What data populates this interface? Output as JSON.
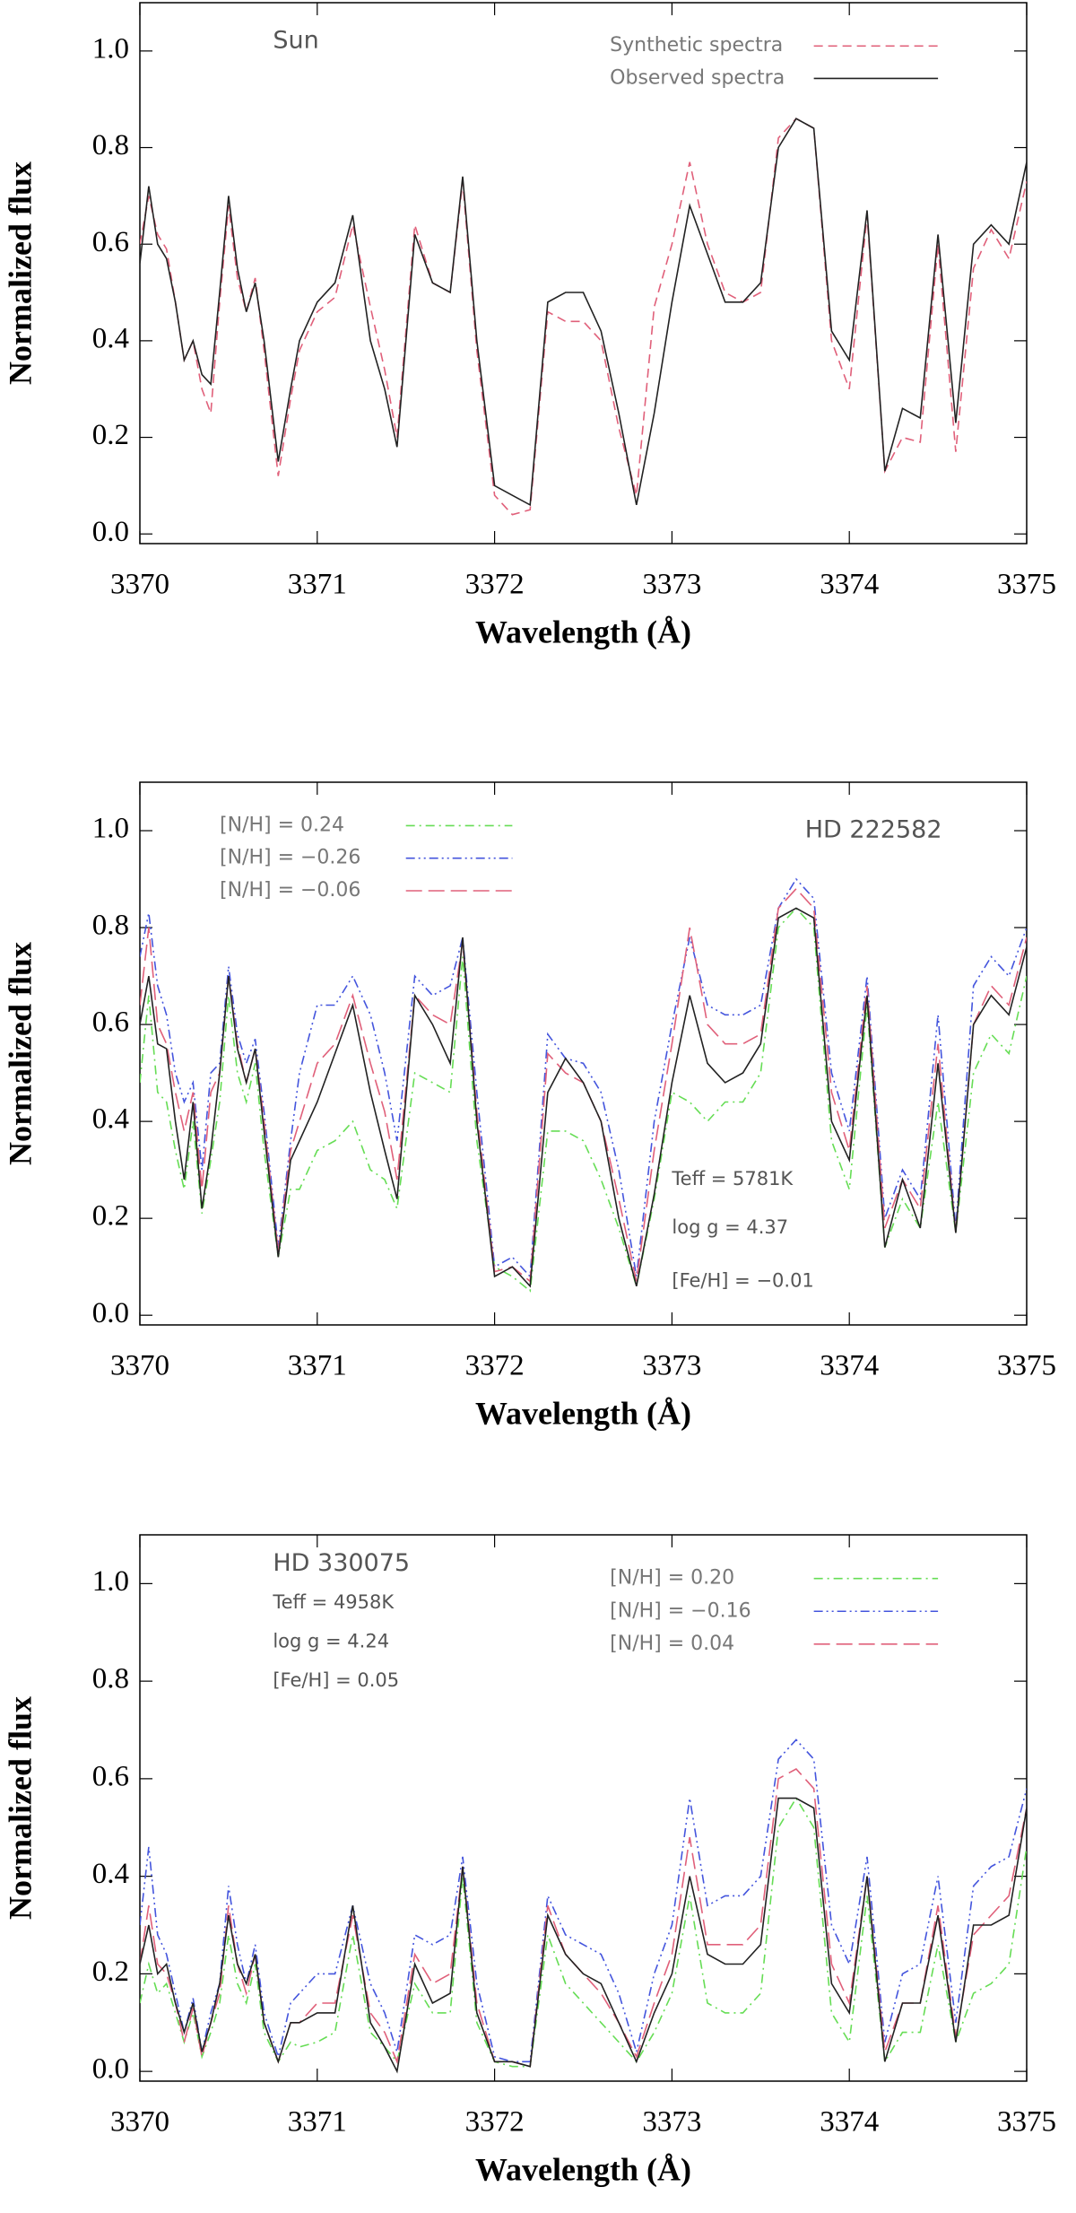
{
  "chart_data": [
    {
      "type": "line",
      "xlabel": "Wavelength (Å)",
      "ylabel": "Normalized flux",
      "annotations": [
        "Sun"
      ],
      "legend": "upper right",
      "grid": false,
      "xlim": [
        3370,
        3375
      ],
      "xticks": [
        3370,
        3371,
        3372,
        3373,
        3374,
        3375
      ],
      "ylim": [
        -0.02,
        1.1
      ],
      "yticks": [
        {
          "value": 0,
          "label": "0.0"
        },
        {
          "value": 0.2,
          "label": "0.2"
        },
        {
          "value": 0.4,
          "label": "0.4"
        },
        {
          "value": 0.6,
          "label": "0.6"
        },
        {
          "value": 0.8,
          "label": "0.8"
        },
        {
          "value": 1,
          "label": "1.0"
        }
      ],
      "x": [
        3370.0,
        3370.05,
        3370.1,
        3370.15,
        3370.2,
        3370.25,
        3370.3,
        3370.35,
        3370.4,
        3370.45,
        3370.5,
        3370.55,
        3370.6,
        3370.65,
        3370.7,
        3370.78,
        3370.85,
        3370.9,
        3371.0,
        3371.1,
        3371.2,
        3371.3,
        3371.38,
        3371.45,
        3371.55,
        3371.65,
        3371.75,
        3371.82,
        3371.9,
        3372.0,
        3372.1,
        3372.2,
        3372.3,
        3372.4,
        3372.5,
        3372.6,
        3372.7,
        3372.8,
        3372.9,
        3373.0,
        3373.1,
        3373.2,
        3373.3,
        3373.4,
        3373.5,
        3373.6,
        3373.7,
        3373.8,
        3373.9,
        3374.0,
        3374.1,
        3374.2,
        3374.3,
        3374.4,
        3374.5,
        3374.6,
        3374.7,
        3374.8,
        3374.9,
        3375.0
      ],
      "series": [
        {
          "name": "Synthetic spectra",
          "color": "#e0607a",
          "style": "dashed",
          "values": [
            0.6,
            0.7,
            0.62,
            0.59,
            0.48,
            0.36,
            0.4,
            0.3,
            0.25,
            0.48,
            0.68,
            0.53,
            0.46,
            0.53,
            0.38,
            0.12,
            0.28,
            0.38,
            0.46,
            0.49,
            0.64,
            0.47,
            0.34,
            0.2,
            0.64,
            0.52,
            0.5,
            0.73,
            0.38,
            0.08,
            0.04,
            0.05,
            0.46,
            0.44,
            0.44,
            0.4,
            0.22,
            0.08,
            0.47,
            0.6,
            0.77,
            0.6,
            0.5,
            0.48,
            0.5,
            0.82,
            0.86,
            0.84,
            0.4,
            0.3,
            0.66,
            0.13,
            0.2,
            0.19,
            0.6,
            0.17,
            0.55,
            0.63,
            0.57,
            0.73
          ]
        },
        {
          "name": "Observed spectra",
          "color": "#222222",
          "style": "solid",
          "values": [
            0.56,
            0.72,
            0.6,
            0.57,
            0.48,
            0.36,
            0.4,
            0.33,
            0.31,
            0.5,
            0.7,
            0.55,
            0.46,
            0.52,
            0.4,
            0.15,
            0.3,
            0.4,
            0.48,
            0.52,
            0.66,
            0.4,
            0.3,
            0.18,
            0.62,
            0.52,
            0.5,
            0.74,
            0.4,
            0.1,
            0.08,
            0.06,
            0.48,
            0.5,
            0.5,
            0.42,
            0.25,
            0.06,
            0.25,
            0.48,
            0.68,
            0.58,
            0.48,
            0.48,
            0.52,
            0.8,
            0.86,
            0.84,
            0.42,
            0.36,
            0.67,
            0.13,
            0.26,
            0.24,
            0.62,
            0.23,
            0.6,
            0.64,
            0.6,
            0.77
          ]
        }
      ]
    },
    {
      "type": "line",
      "xlabel": "Wavelength (Å)",
      "ylabel": "Normalized flux",
      "annotations": [
        "HD 222582",
        "Teff = 5781K",
        "log g = 4.37",
        "[Fe/H] = −0.01"
      ],
      "legend": "upper left",
      "grid": false,
      "xlim": [
        3370,
        3375
      ],
      "xticks": [
        3370,
        3371,
        3372,
        3373,
        3374,
        3375
      ],
      "ylim": [
        -0.02,
        1.1
      ],
      "yticks": [
        {
          "value": 0,
          "label": "0.0"
        },
        {
          "value": 0.2,
          "label": "0.2"
        },
        {
          "value": 0.4,
          "label": "0.4"
        },
        {
          "value": 0.6,
          "label": "0.6"
        },
        {
          "value": 0.8,
          "label": "0.8"
        },
        {
          "value": 1,
          "label": "1.0"
        }
      ],
      "x": [
        3370.0,
        3370.05,
        3370.1,
        3370.15,
        3370.2,
        3370.25,
        3370.3,
        3370.35,
        3370.4,
        3370.45,
        3370.5,
        3370.55,
        3370.6,
        3370.65,
        3370.7,
        3370.78,
        3370.85,
        3370.9,
        3371.0,
        3371.1,
        3371.2,
        3371.3,
        3371.38,
        3371.45,
        3371.55,
        3371.65,
        3371.75,
        3371.82,
        3371.9,
        3372.0,
        3372.1,
        3372.2,
        3372.3,
        3372.4,
        3372.5,
        3372.6,
        3372.7,
        3372.8,
        3372.9,
        3373.0,
        3373.1,
        3373.2,
        3373.3,
        3373.4,
        3373.5,
        3373.6,
        3373.7,
        3373.8,
        3373.9,
        3374.0,
        3374.1,
        3374.2,
        3374.3,
        3374.4,
        3374.5,
        3374.6,
        3374.7,
        3374.8,
        3374.9,
        3375.0
      ],
      "series": [
        {
          "name": "[N/H] =  0.24",
          "color": "#66dd55",
          "style": "dashdot",
          "values": [
            0.48,
            0.66,
            0.46,
            0.44,
            0.34,
            0.26,
            0.4,
            0.21,
            0.32,
            0.44,
            0.66,
            0.5,
            0.44,
            0.52,
            0.34,
            0.12,
            0.26,
            0.26,
            0.34,
            0.36,
            0.4,
            0.3,
            0.28,
            0.22,
            0.5,
            0.48,
            0.46,
            0.74,
            0.36,
            0.1,
            0.08,
            0.05,
            0.38,
            0.38,
            0.36,
            0.28,
            0.18,
            0.06,
            0.24,
            0.46,
            0.44,
            0.4,
            0.44,
            0.44,
            0.5,
            0.8,
            0.84,
            0.8,
            0.36,
            0.26,
            0.64,
            0.14,
            0.24,
            0.18,
            0.44,
            0.17,
            0.5,
            0.58,
            0.54,
            0.7
          ]
        },
        {
          "name": "[N/H] = −0.26",
          "color": "#4455dd",
          "style": "dashdotdot",
          "values": [
            0.74,
            0.83,
            0.68,
            0.62,
            0.5,
            0.44,
            0.48,
            0.3,
            0.5,
            0.52,
            0.72,
            0.58,
            0.52,
            0.57,
            0.42,
            0.14,
            0.36,
            0.5,
            0.64,
            0.64,
            0.7,
            0.62,
            0.5,
            0.36,
            0.7,
            0.66,
            0.68,
            0.78,
            0.46,
            0.1,
            0.12,
            0.08,
            0.58,
            0.53,
            0.52,
            0.46,
            0.3,
            0.08,
            0.4,
            0.6,
            0.78,
            0.64,
            0.62,
            0.62,
            0.64,
            0.84,
            0.9,
            0.86,
            0.5,
            0.38,
            0.7,
            0.2,
            0.3,
            0.24,
            0.62,
            0.18,
            0.68,
            0.74,
            0.7,
            0.8
          ]
        },
        {
          "name": "[N/H] = −0.06",
          "color": "#e0607a",
          "style": "longdash",
          "values": [
            0.64,
            0.8,
            0.6,
            0.56,
            0.46,
            0.38,
            0.46,
            0.26,
            0.46,
            0.5,
            0.7,
            0.56,
            0.48,
            0.55,
            0.4,
            0.13,
            0.34,
            0.4,
            0.52,
            0.56,
            0.66,
            0.52,
            0.42,
            0.28,
            0.66,
            0.62,
            0.6,
            0.77,
            0.42,
            0.09,
            0.1,
            0.07,
            0.54,
            0.5,
            0.48,
            0.4,
            0.24,
            0.07,
            0.34,
            0.56,
            0.8,
            0.6,
            0.56,
            0.56,
            0.58,
            0.84,
            0.88,
            0.84,
            0.46,
            0.34,
            0.68,
            0.18,
            0.28,
            0.22,
            0.56,
            0.17,
            0.6,
            0.68,
            0.64,
            0.78
          ]
        },
        {
          "color": "#222222",
          "style": "solid",
          "values": [
            0.6,
            0.7,
            0.56,
            0.55,
            0.4,
            0.28,
            0.44,
            0.22,
            0.34,
            0.5,
            0.7,
            0.55,
            0.48,
            0.55,
            0.38,
            0.12,
            0.32,
            0.36,
            0.44,
            0.54,
            0.64,
            0.46,
            0.34,
            0.24,
            0.66,
            0.6,
            0.52,
            0.78,
            0.4,
            0.08,
            0.1,
            0.06,
            0.46,
            0.53,
            0.48,
            0.4,
            0.2,
            0.06,
            0.25,
            0.48,
            0.66,
            0.52,
            0.48,
            0.5,
            0.56,
            0.82,
            0.84,
            0.82,
            0.4,
            0.32,
            0.66,
            0.14,
            0.28,
            0.18,
            0.52,
            0.17,
            0.6,
            0.66,
            0.62,
            0.76
          ]
        }
      ]
    },
    {
      "type": "line",
      "xlabel": "Wavelength (Å)",
      "ylabel": "Normalized flux",
      "annotations": [
        "HD 330075",
        "Teff = 4958K",
        "log g = 4.24",
        "[Fe/H] = 0.05"
      ],
      "legend": "upper right",
      "grid": false,
      "xlim": [
        3370,
        3375
      ],
      "xticks": [
        3370,
        3371,
        3372,
        3373,
        3374,
        3375
      ],
      "ylim": [
        -0.02,
        1.1
      ],
      "yticks": [
        {
          "value": 0,
          "label": "0.0"
        },
        {
          "value": 0.2,
          "label": "0.2"
        },
        {
          "value": 0.4,
          "label": "0.4"
        },
        {
          "value": 0.6,
          "label": "0.6"
        },
        {
          "value": 0.8,
          "label": "0.8"
        },
        {
          "value": 1,
          "label": "1.0"
        }
      ],
      "x": [
        3370.0,
        3370.05,
        3370.1,
        3370.15,
        3370.2,
        3370.25,
        3370.3,
        3370.35,
        3370.4,
        3370.45,
        3370.5,
        3370.55,
        3370.6,
        3370.65,
        3370.7,
        3370.78,
        3370.85,
        3370.9,
        3371.0,
        3371.1,
        3371.2,
        3371.3,
        3371.38,
        3371.45,
        3371.55,
        3371.65,
        3371.75,
        3371.82,
        3371.9,
        3372.0,
        3372.1,
        3372.2,
        3372.3,
        3372.4,
        3372.5,
        3372.6,
        3372.7,
        3372.8,
        3372.9,
        3373.0,
        3373.1,
        3373.2,
        3373.3,
        3373.4,
        3373.5,
        3373.6,
        3373.7,
        3373.8,
        3373.9,
        3374.0,
        3374.1,
        3374.2,
        3374.3,
        3374.4,
        3374.5,
        3374.6,
        3374.7,
        3374.8,
        3374.9,
        3375.0
      ],
      "series": [
        {
          "name": "[N/H] =  0.20",
          "color": "#66dd55",
          "style": "dashdot",
          "values": [
            0.14,
            0.22,
            0.16,
            0.18,
            0.12,
            0.06,
            0.12,
            0.03,
            0.08,
            0.14,
            0.28,
            0.18,
            0.14,
            0.22,
            0.08,
            0.02,
            0.06,
            0.05,
            0.06,
            0.08,
            0.28,
            0.08,
            0.05,
            0.02,
            0.18,
            0.12,
            0.12,
            0.4,
            0.1,
            0.02,
            0.01,
            0.01,
            0.28,
            0.18,
            0.14,
            0.1,
            0.06,
            0.02,
            0.08,
            0.16,
            0.36,
            0.14,
            0.12,
            0.12,
            0.16,
            0.5,
            0.56,
            0.5,
            0.12,
            0.06,
            0.36,
            0.02,
            0.08,
            0.08,
            0.26,
            0.06,
            0.16,
            0.18,
            0.22,
            0.46
          ]
        },
        {
          "name": "[N/H] = −0.16",
          "color": "#4455dd",
          "style": "dashdotdot",
          "values": [
            0.3,
            0.46,
            0.28,
            0.24,
            0.16,
            0.08,
            0.15,
            0.04,
            0.12,
            0.18,
            0.38,
            0.26,
            0.18,
            0.26,
            0.12,
            0.03,
            0.14,
            0.16,
            0.2,
            0.2,
            0.34,
            0.18,
            0.12,
            0.04,
            0.28,
            0.26,
            0.28,
            0.44,
            0.18,
            0.03,
            0.02,
            0.02,
            0.36,
            0.28,
            0.26,
            0.24,
            0.16,
            0.04,
            0.2,
            0.3,
            0.56,
            0.34,
            0.36,
            0.36,
            0.4,
            0.64,
            0.68,
            0.64,
            0.3,
            0.22,
            0.44,
            0.06,
            0.2,
            0.22,
            0.4,
            0.1,
            0.38,
            0.42,
            0.44,
            0.58
          ]
        },
        {
          "name": "[N/H] =  0.04",
          "color": "#e0607a",
          "style": "longdash",
          "values": [
            0.22,
            0.34,
            0.22,
            0.2,
            0.14,
            0.06,
            0.13,
            0.03,
            0.1,
            0.16,
            0.34,
            0.22,
            0.16,
            0.24,
            0.1,
            0.02,
            0.1,
            0.1,
            0.14,
            0.14,
            0.32,
            0.12,
            0.08,
            0.02,
            0.24,
            0.18,
            0.2,
            0.42,
            0.14,
            0.02,
            0.02,
            0.01,
            0.34,
            0.24,
            0.2,
            0.16,
            0.1,
            0.03,
            0.14,
            0.24,
            0.48,
            0.26,
            0.26,
            0.26,
            0.3,
            0.6,
            0.62,
            0.58,
            0.22,
            0.14,
            0.4,
            0.04,
            0.14,
            0.14,
            0.34,
            0.07,
            0.28,
            0.32,
            0.36,
            0.54
          ]
        },
        {
          "color": "#222222",
          "style": "solid",
          "values": [
            0.22,
            0.3,
            0.2,
            0.22,
            0.14,
            0.08,
            0.14,
            0.04,
            0.1,
            0.18,
            0.32,
            0.22,
            0.18,
            0.24,
            0.1,
            0.02,
            0.1,
            0.1,
            0.12,
            0.12,
            0.34,
            0.1,
            0.05,
            0.0,
            0.22,
            0.14,
            0.16,
            0.42,
            0.12,
            0.02,
            0.02,
            0.01,
            0.32,
            0.24,
            0.2,
            0.18,
            0.1,
            0.02,
            0.12,
            0.2,
            0.4,
            0.24,
            0.22,
            0.22,
            0.26,
            0.56,
            0.56,
            0.54,
            0.18,
            0.12,
            0.4,
            0.02,
            0.14,
            0.14,
            0.32,
            0.06,
            0.3,
            0.3,
            0.32,
            0.54
          ]
        }
      ]
    }
  ]
}
